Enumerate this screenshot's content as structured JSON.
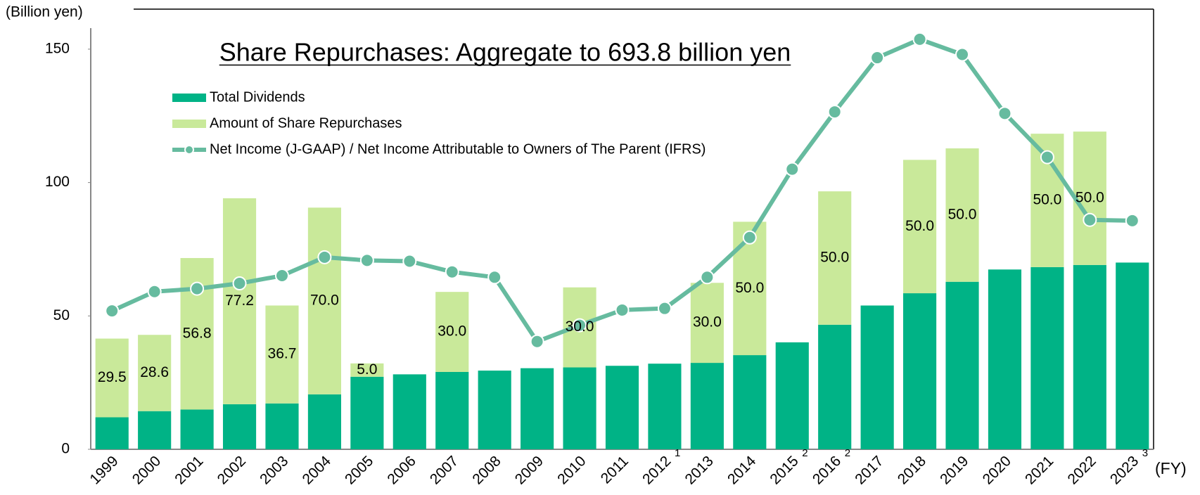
{
  "chart_data": {
    "type": "bar",
    "title": "Share Repurchases: Aggregate to 693.8 billion yen",
    "y_axis_label": "(Billion yen)",
    "x_axis_label": "(FY)",
    "categories": [
      "1999",
      "2000",
      "2001",
      "2002",
      "2003",
      "2004",
      "2005",
      "2006",
      "2007",
      "2008",
      "2009",
      "2010",
      "2011",
      "2012",
      "2013",
      "2014",
      "2015",
      "2016",
      "2017",
      "2018",
      "2019",
      "2020",
      "2021",
      "2022",
      "2023"
    ],
    "category_footnotes": [
      null,
      null,
      null,
      null,
      null,
      null,
      null,
      null,
      null,
      null,
      null,
      null,
      null,
      "1",
      null,
      null,
      "2",
      "2",
      null,
      null,
      null,
      null,
      null,
      null,
      "3"
    ],
    "stacked": true,
    "series": [
      {
        "name": "Total Dividends",
        "type": "bar",
        "color": "#00b386",
        "values": [
          12.0,
          14.3,
          14.9,
          16.9,
          17.2,
          20.6,
          27.2,
          28.1,
          29.0,
          29.5,
          30.4,
          30.7,
          31.3,
          32.1,
          32.4,
          35.3,
          40.1,
          46.7,
          53.9,
          58.5,
          62.8,
          67.4,
          68.3,
          69.1,
          70.0
        ]
      },
      {
        "name": "Amount of Share Repurchases",
        "type": "bar",
        "color": "#c9e99a",
        "values": [
          29.5,
          28.6,
          56.8,
          77.2,
          36.7,
          70.0,
          5.0,
          null,
          30.0,
          null,
          null,
          30.0,
          null,
          null,
          30.0,
          50.0,
          null,
          50.0,
          null,
          50.0,
          50.0,
          null,
          50.0,
          50.0,
          null
        ],
        "value_labels": [
          "29.5",
          "28.6",
          "56.8",
          "77.2",
          "36.7",
          "70.0",
          "5.0",
          null,
          "30.0",
          null,
          null,
          "30.0",
          null,
          null,
          "30.0",
          "50.0",
          null,
          "50.0",
          null,
          "50.0",
          "50.0",
          null,
          "50.0",
          "50.0",
          null
        ]
      },
      {
        "name": "Net Income (J-GAAP) / Net Income Attributable to Owners of The Parent (IFRS)",
        "type": "line",
        "color": "#66bb9f",
        "values": [
          51.9,
          59.1,
          60.2,
          62.2,
          65.1,
          72.0,
          70.8,
          70.5,
          66.5,
          64.5,
          40.4,
          46.5,
          52.2,
          52.8,
          64.5,
          79.4,
          105.0,
          126.5,
          146.8,
          153.7,
          148.0,
          125.9,
          109.5,
          86.0,
          85.7
        ]
      }
    ],
    "ylim": [
      0,
      165
    ],
    "yticks": [
      0,
      50,
      100,
      150
    ],
    "grid": false,
    "legend": "upper left"
  }
}
